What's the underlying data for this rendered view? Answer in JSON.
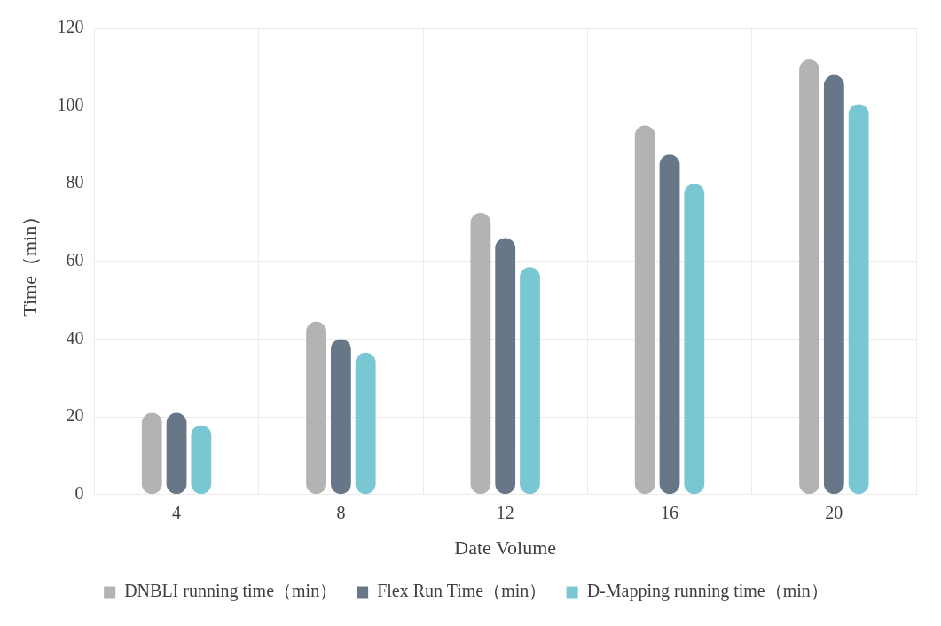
{
  "chart_data": {
    "type": "bar",
    "xlabel": "Date Volume",
    "ylabel": "Time（min）",
    "categories": [
      "4",
      "8",
      "12",
      "16",
      "20"
    ],
    "series": [
      {
        "name": "DNBLI running time（min）",
        "color": "#b2b3b3",
        "values": [
          21,
          44.5,
          72.5,
          95,
          112
        ]
      },
      {
        "name": "Flex Run Time（min）",
        "color": "#687788",
        "values": [
          21,
          40,
          66,
          87.5,
          108
        ]
      },
      {
        "name": "D-Mapping running time（min）",
        "color": "#7ac7d4",
        "values": [
          17.8,
          36.5,
          58.5,
          80,
          100.5
        ]
      }
    ],
    "ylim": [
      0,
      120
    ],
    "yticks": [
      0,
      20,
      40,
      60,
      80,
      100,
      120
    ],
    "grid": true,
    "legend": "bottom"
  }
}
